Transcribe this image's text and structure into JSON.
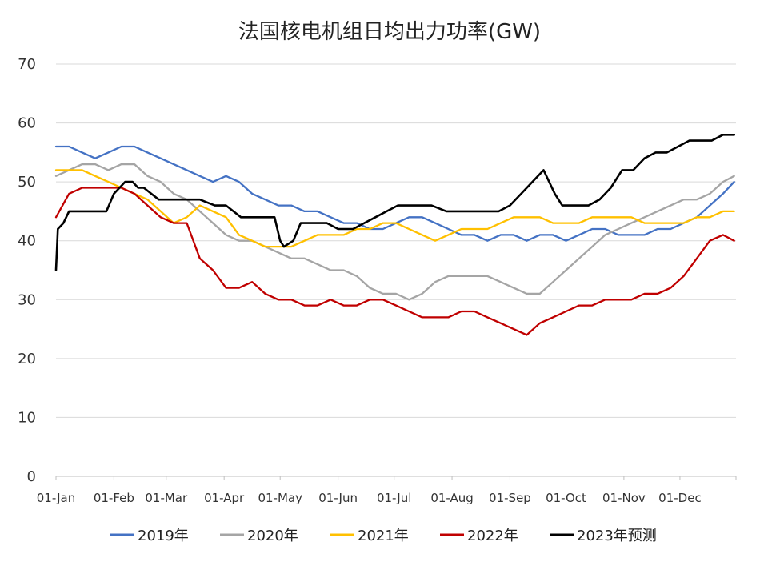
{
  "chart_data": {
    "type": "line",
    "title": "法国核电机组日均出力功率(GW)",
    "xlabel": "",
    "ylabel": "",
    "ylim": [
      0,
      70
    ],
    "y_ticks": [
      0,
      10,
      20,
      30,
      40,
      50,
      60,
      70
    ],
    "x_domain": [
      1,
      365
    ],
    "x_ticks": [
      {
        "label": "01-Jan",
        "day": 1
      },
      {
        "label": "01-Feb",
        "day": 32
      },
      {
        "label": "01-Mar",
        "day": 60
      },
      {
        "label": "01-Apr",
        "day": 91
      },
      {
        "label": "01-May",
        "day": 121
      },
      {
        "label": "01-Jun",
        "day": 152
      },
      {
        "label": "01-Jul",
        "day": 182
      },
      {
        "label": "01-Aug",
        "day": 213
      },
      {
        "label": "01-Sep",
        "day": 244
      },
      {
        "label": "01-Oct",
        "day": 274
      },
      {
        "label": "01-Nov",
        "day": 305
      },
      {
        "label": "01-Dec",
        "day": 335
      }
    ],
    "grid": true,
    "legend_position": "bottom",
    "series": [
      {
        "name": "2019年",
        "color": "#4472C4",
        "x": [
          1,
          8,
          15,
          22,
          29,
          36,
          43,
          50,
          57,
          64,
          71,
          78,
          85,
          92,
          99,
          106,
          113,
          120,
          127,
          134,
          141,
          148,
          155,
          162,
          169,
          176,
          183,
          190,
          197,
          204,
          211,
          218,
          225,
          232,
          239,
          246,
          253,
          260,
          267,
          274,
          281,
          288,
          295,
          302,
          309,
          316,
          323,
          330,
          337,
          344,
          351,
          358,
          364
        ],
        "y": [
          56,
          56,
          55,
          54,
          55,
          56,
          56,
          55,
          54,
          53,
          52,
          51,
          50,
          51,
          50,
          48,
          47,
          46,
          46,
          45,
          45,
          44,
          43,
          43,
          42,
          42,
          43,
          44,
          44,
          43,
          42,
          41,
          41,
          40,
          41,
          41,
          40,
          41,
          41,
          40,
          41,
          42,
          42,
          41,
          41,
          41,
          42,
          42,
          43,
          44,
          46,
          48,
          50
        ]
      },
      {
        "name": "2020年",
        "color": "#A5A5A5",
        "x": [
          1,
          8,
          15,
          22,
          29,
          36,
          43,
          50,
          57,
          64,
          71,
          78,
          85,
          92,
          99,
          106,
          113,
          120,
          127,
          134,
          141,
          148,
          155,
          162,
          169,
          176,
          183,
          190,
          197,
          204,
          211,
          218,
          225,
          232,
          239,
          246,
          253,
          260,
          267,
          274,
          281,
          288,
          295,
          302,
          309,
          316,
          323,
          330,
          337,
          344,
          351,
          358,
          364
        ],
        "y": [
          51,
          52,
          53,
          53,
          52,
          53,
          53,
          51,
          50,
          48,
          47,
          45,
          43,
          41,
          40,
          40,
          39,
          38,
          37,
          37,
          36,
          35,
          35,
          34,
          32,
          31,
          31,
          30,
          31,
          33,
          34,
          34,
          34,
          34,
          33,
          32,
          31,
          31,
          33,
          35,
          37,
          39,
          41,
          42,
          43,
          44,
          45,
          46,
          47,
          47,
          48,
          50,
          51
        ]
      },
      {
        "name": "2021年",
        "color": "#FFC000",
        "x": [
          1,
          8,
          15,
          22,
          29,
          36,
          43,
          50,
          57,
          64,
          71,
          78,
          85,
          92,
          99,
          106,
          113,
          120,
          127,
          134,
          141,
          148,
          155,
          162,
          169,
          176,
          183,
          190,
          197,
          204,
          211,
          218,
          225,
          232,
          239,
          246,
          253,
          260,
          267,
          274,
          281,
          288,
          295,
          302,
          309,
          316,
          323,
          330,
          337,
          344,
          351,
          358,
          364
        ],
        "y": [
          52,
          52,
          52,
          51,
          50,
          49,
          48,
          47,
          45,
          43,
          44,
          46,
          45,
          44,
          41,
          40,
          39,
          39,
          39,
          40,
          41,
          41,
          41,
          42,
          42,
          43,
          43,
          42,
          41,
          40,
          41,
          42,
          42,
          42,
          43,
          44,
          44,
          44,
          43,
          43,
          43,
          44,
          44,
          44,
          44,
          43,
          43,
          43,
          43,
          44,
          44,
          45,
          45
        ]
      },
      {
        "name": "2022年",
        "color": "#C00000",
        "x": [
          1,
          8,
          15,
          22,
          29,
          36,
          43,
          50,
          57,
          64,
          71,
          78,
          85,
          92,
          99,
          106,
          113,
          120,
          127,
          134,
          141,
          148,
          155,
          162,
          169,
          176,
          183,
          190,
          197,
          204,
          211,
          218,
          225,
          232,
          239,
          246,
          253,
          260,
          267,
          274,
          281,
          288,
          295,
          302,
          309,
          316,
          323,
          330,
          337,
          344,
          351,
          358,
          364
        ],
        "y": [
          44,
          48,
          49,
          49,
          49,
          49,
          48,
          46,
          44,
          43,
          43,
          37,
          35,
          32,
          32,
          33,
          31,
          30,
          30,
          29,
          29,
          30,
          29,
          29,
          30,
          30,
          29,
          28,
          27,
          27,
          27,
          28,
          28,
          27,
          26,
          25,
          24,
          26,
          27,
          28,
          29,
          29,
          30,
          30,
          30,
          31,
          31,
          32,
          34,
          37,
          40,
          41,
          40
        ]
      },
      {
        "name": "2023年预测",
        "color": "#000000",
        "x": [
          1,
          2,
          5,
          8,
          14,
          20,
          28,
          32,
          38,
          42,
          45,
          48,
          52,
          56,
          60,
          64,
          70,
          78,
          86,
          92,
          96,
          100,
          110,
          118,
          121,
          123,
          128,
          132,
          140,
          146,
          152,
          156,
          160,
          166,
          172,
          178,
          184,
          190,
          196,
          202,
          210,
          216,
          222,
          230,
          238,
          244,
          250,
          256,
          262,
          268,
          272,
          280,
          286,
          292,
          298,
          304,
          310,
          316,
          322,
          328,
          334,
          340,
          346,
          352,
          358,
          362,
          364
        ],
        "y": [
          35,
          42,
          43,
          45,
          45,
          45,
          45,
          48,
          50,
          50,
          49,
          49,
          48,
          47,
          47,
          47,
          47,
          47,
          46,
          46,
          45,
          44,
          44,
          44,
          40,
          39,
          40,
          43,
          43,
          43,
          42,
          42,
          42,
          43,
          44,
          45,
          46,
          46,
          46,
          46,
          45,
          45,
          45,
          45,
          45,
          46,
          48,
          50,
          52,
          48,
          46,
          46,
          46,
          47,
          49,
          52,
          52,
          54,
          55,
          55,
          56,
          57,
          57,
          57,
          58,
          58,
          58
        ]
      }
    ]
  }
}
